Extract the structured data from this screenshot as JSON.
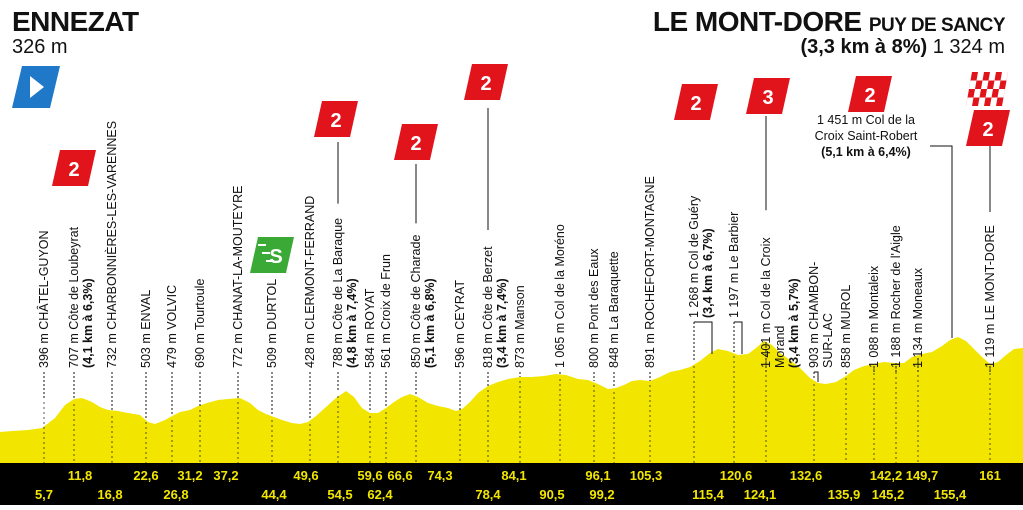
{
  "start": {
    "name": "ENNEZAT",
    "altitude": "326 m"
  },
  "finish": {
    "name": "LE MONT-DORE",
    "sub": "PUY DE SANCY",
    "climb": "(3,3 km à 8%)",
    "altitude": "1 324 m"
  },
  "colors": {
    "profile": "#f2e600",
    "climb_badge": "#e1141c",
    "sprint_badge": "#3aa935",
    "start_flag": "#1f78c8",
    "km_bar": "#000000",
    "km_text": "#f2e600"
  },
  "icons": {
    "start": "start-flag-icon",
    "finish": "checkered-flag-icon",
    "sprint": "sprint-icon",
    "climb": "climb-category-icon"
  },
  "waypoints": [
    {
      "label": "396 m CHÂTEL-GUYON"
    },
    {
      "label": "707 m Côte de Loubeyrat",
      "detail": "(4,1 km à 6,3%)",
      "category": "2"
    },
    {
      "label": "732 m CHARBONNIÈRES-LES-VARENNES"
    },
    {
      "label": "503 m ENVAL"
    },
    {
      "label": "479 m VOLVIC"
    },
    {
      "label": "690 m Tourtoule"
    },
    {
      "label": "772 m CHANAT-LA-MOUTEYRE"
    },
    {
      "label": "509 m DURTOL",
      "sprint": "S"
    },
    {
      "label": "428 m CLERMONT-FERRAND"
    },
    {
      "label": "788 m Côte de La Baraque",
      "detail": "(4,8 km à 7,4%)",
      "category": "2"
    },
    {
      "label": "584 m ROYAT"
    },
    {
      "label": "561 m Croix de Frun"
    },
    {
      "label": "850 m Côte de Charade",
      "detail": "(5,1 km à 6,8%)",
      "category": "2"
    },
    {
      "label": "596 m CEYRAT"
    },
    {
      "label": "818 m Côte de Berzet",
      "detail": "(3,4 km à 7,4%)",
      "category": "2"
    },
    {
      "label": "873 m Manson"
    },
    {
      "label": "1 065 m Col de la Moréno"
    },
    {
      "label": "800 m Pont des Eaux"
    },
    {
      "label": "848 m La Baraquette"
    },
    {
      "label": "891 m ROCHEFORT-MONTAGNE"
    },
    {
      "label": "1 268 m Col de Guéry",
      "detail": "(3,4 km à 6,7%)",
      "category": "2"
    },
    {
      "label": "1 197 m Le Barbier"
    },
    {
      "label": "1 401 m Col de la Croix",
      "label2": "Morand",
      "detail": "(3,4 km à 5,7%)",
      "category": "3"
    },
    {
      "label": "903 m CHAMBON-",
      "label2": "SUR-LAC"
    },
    {
      "label": "858 m MUROL"
    },
    {
      "label": "1 088 m Montaleix"
    },
    {
      "label": "1 188 m Rocher de l'Aigle"
    },
    {
      "label": "1 134 m Moneaux"
    },
    {
      "label": "1 119 m LE MONT-DORE"
    }
  ],
  "saint_robert": {
    "line1": "1 451 m Col de la",
    "line2": "Croix Saint-Robert",
    "line3": "(5,1 km à 6,4%)",
    "category": "2"
  },
  "finish_category": "2",
  "km_top": [
    "11,8",
    "22,6",
    "31,2",
    "37,2",
    "49,6",
    "59,6",
    "66,6",
    "74,3",
    "84,1",
    "96,1",
    "105,3",
    "120,6",
    "132,6",
    "142,2",
    "149,7",
    "161"
  ],
  "km_bottom": [
    "5,7",
    "16,8",
    "26,8",
    "44,4",
    "54,5",
    "62,4",
    "78,4",
    "90,5",
    "99,2",
    "115,4",
    "124,1",
    "135,9",
    "145,2",
    "155,4"
  ]
}
